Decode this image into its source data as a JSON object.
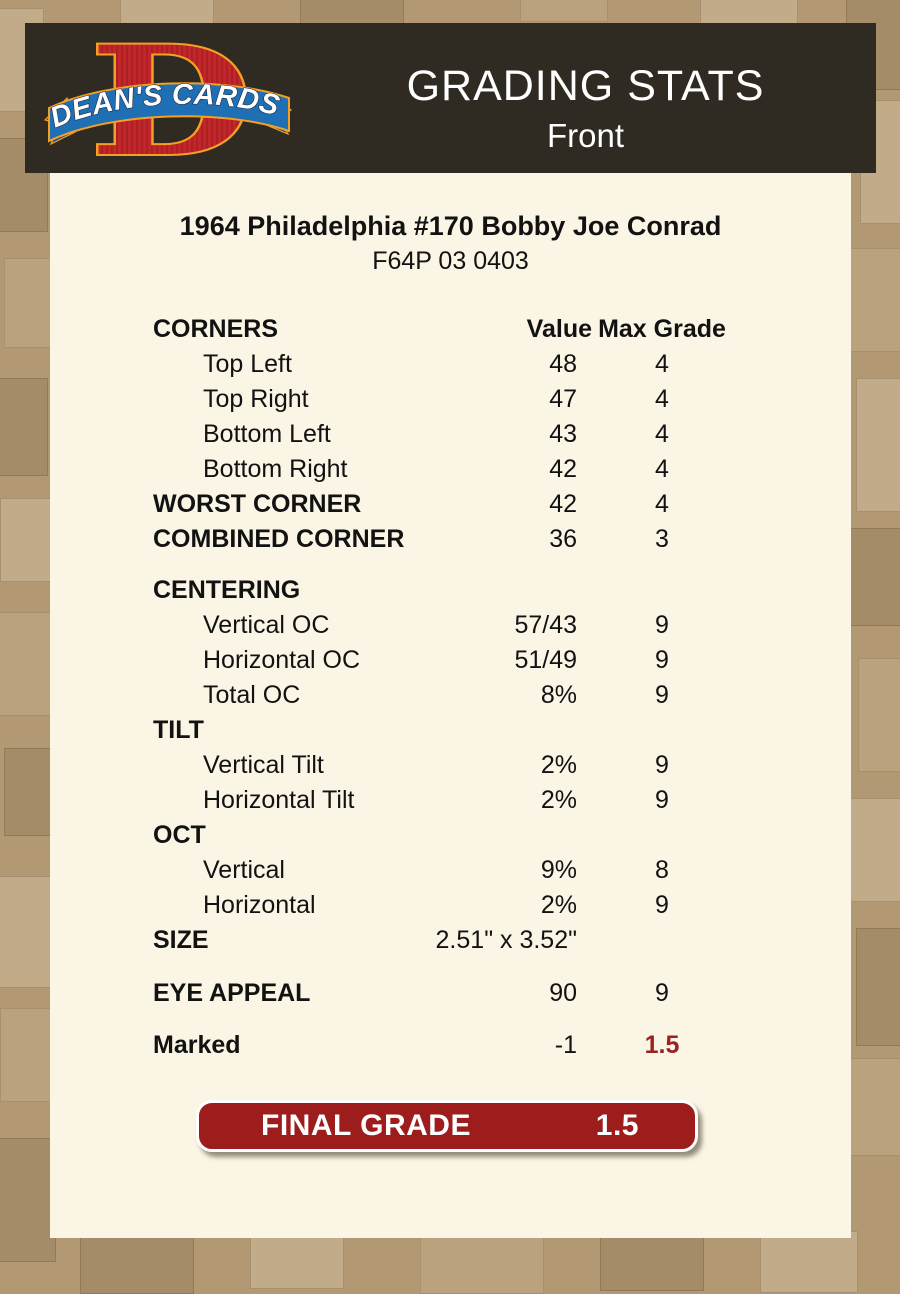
{
  "header": {
    "logo": {
      "monogram": "D",
      "banner_text": "DEAN'S CARDS"
    },
    "title": "GRADING STATS",
    "subtitle": "Front"
  },
  "card": {
    "title": "1964 Philadelphia #170 Bobby Joe Conrad",
    "code": "F64P 03 0403",
    "table": {
      "header": {
        "label": "CORNERS",
        "value_col": "Value",
        "grade_col": "Max Grade"
      },
      "rows": [
        {
          "label": "Top Left",
          "value": "48",
          "grade": "4",
          "indent": true
        },
        {
          "label": "Top Right",
          "value": "47",
          "grade": "4",
          "indent": true
        },
        {
          "label": "Bottom Left",
          "value": "43",
          "grade": "4",
          "indent": true
        },
        {
          "label": "Bottom Right",
          "value": "42",
          "grade": "4",
          "indent": true
        },
        {
          "label": "WORST CORNER",
          "value": "42",
          "grade": "4",
          "bold": true
        },
        {
          "label": "COMBINED CORNER",
          "value": "36",
          "grade": "3",
          "bold": true
        },
        {
          "label": "CENTERING",
          "value": "",
          "grade": "",
          "bold": true,
          "gap": 16
        },
        {
          "label": "Vertical OC",
          "value": "57/43",
          "grade": "9",
          "indent": true
        },
        {
          "label": "Horizontal OC",
          "value": "51/49",
          "grade": "9",
          "indent": true
        },
        {
          "label": "Total OC",
          "value": "8%",
          "grade": "9",
          "indent": true
        },
        {
          "label": "TILT",
          "value": "",
          "grade": "",
          "bold": true
        },
        {
          "label": "Vertical Tilt",
          "value": "2%",
          "grade": "9",
          "indent": true
        },
        {
          "label": "Horizontal Tilt",
          "value": "2%",
          "grade": "9",
          "indent": true
        },
        {
          "label": "OCT",
          "value": "",
          "grade": "",
          "bold": true
        },
        {
          "label": "Vertical",
          "value": "9%",
          "grade": "8",
          "indent": true
        },
        {
          "label": "Horizontal",
          "value": "2%",
          "grade": "9",
          "indent": true
        },
        {
          "label": "SIZE",
          "value": "2.51\" x 3.52\"",
          "grade": "",
          "bold": true
        },
        {
          "label": "EYE APPEAL",
          "value": "90",
          "grade": "9",
          "bold": true,
          "gap": 18
        },
        {
          "label": "Marked",
          "value": "-1",
          "grade": "1.5",
          "bold": true,
          "gap": 17,
          "grade_highlight": true
        }
      ]
    },
    "final_grade": {
      "label": "FINAL GRADE",
      "value": "1.5"
    }
  },
  "colors": {
    "page_bg": "#B29873",
    "header_bg": "#2F2A22",
    "card_bg": "#FAF5E5",
    "maroon": "#9C1D1B",
    "grade_highlight": "#9C2123",
    "logo_red": "#C1272D",
    "banner_blue": "#1E6FB4",
    "accent_gold": "#F5A023"
  }
}
